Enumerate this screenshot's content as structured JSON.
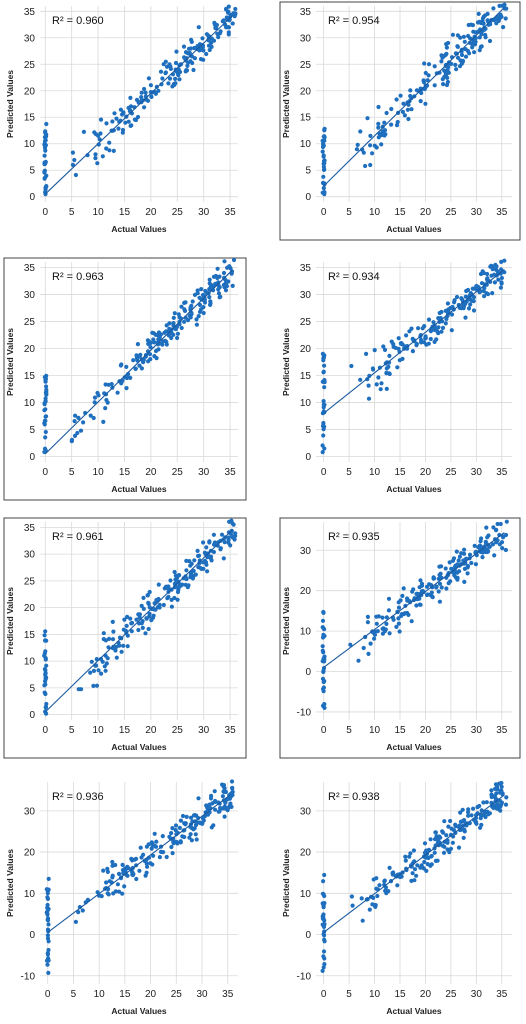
{
  "figure": {
    "marker_color": "#1f6fbf",
    "line_color": "#1a5aa0",
    "grid_color": "#d9d9d9",
    "panels": [
      {
        "r2_label": "R² = 0.960",
        "xlabel": "Actual Values",
        "ylabel": "Predicted Values",
        "xticks": [
          "0",
          "5",
          "10",
          "15",
          "20",
          "25",
          "30",
          "35"
        ],
        "yticks": [
          "0",
          "5",
          "10",
          "15",
          "20",
          "25",
          "30",
          "35"
        ],
        "xlim": [
          -1,
          36.5
        ],
        "ylim": [
          -1,
          36
        ],
        "fit": {
          "slope": 0.95,
          "intercept": 0.5
        },
        "zero_cluster": {
          "min": 0,
          "max": 14
        },
        "noise": 2.0
      },
      {
        "r2_label": "R² = 0.954",
        "xlabel": "Actual Values",
        "ylabel": "Predicted Values",
        "xticks": [
          "0",
          "5",
          "10",
          "15",
          "20",
          "25",
          "30",
          "35"
        ],
        "yticks": [
          "0",
          "5",
          "10",
          "15",
          "20",
          "25",
          "30",
          "35"
        ],
        "xlim": [
          -1.5,
          37
        ],
        "ylim": [
          -1,
          36
        ],
        "fit": {
          "slope": 0.95,
          "intercept": 2.0
        },
        "zero_cluster": {
          "min": 0,
          "max": 14
        },
        "noise": 2.2
      },
      {
        "r2_label": "R² = 0.963",
        "xlabel": "Actual Values",
        "ylabel": "Predicted Values",
        "xticks": [
          "0",
          "5",
          "10",
          "15",
          "20",
          "25",
          "30",
          "35"
        ],
        "yticks": [
          "0",
          "5",
          "10",
          "15",
          "20",
          "25",
          "30",
          "35"
        ],
        "xlim": [
          -1,
          36.5
        ],
        "ylim": [
          -1,
          36
        ],
        "fit": {
          "slope": 0.96,
          "intercept": 0.5
        },
        "zero_cluster": {
          "min": 0,
          "max": 15
        },
        "noise": 1.9
      },
      {
        "r2_label": "R² = 0.934",
        "xlabel": "Actual Values",
        "ylabel": "Predicted Values",
        "xticks": [
          "0",
          "5",
          "10",
          "15",
          "20",
          "25",
          "30",
          "35"
        ],
        "yticks": [
          "0",
          "5",
          "10",
          "15",
          "20",
          "25",
          "30",
          "35"
        ],
        "xlim": [
          -1.5,
          37
        ],
        "ylim": [
          -1,
          36
        ],
        "fit": {
          "slope": 0.75,
          "intercept": 8.0
        },
        "zero_cluster": {
          "min": 0,
          "max": 19
        },
        "noise": 1.8
      },
      {
        "r2_label": "R² = 0.961",
        "xlabel": "Actual Values",
        "ylabel": "Predicted Values",
        "xticks": [
          "0",
          "5",
          "10",
          "15",
          "20",
          "25",
          "30",
          "35"
        ],
        "yticks": [
          "0",
          "5",
          "10",
          "15",
          "20",
          "25",
          "30",
          "35"
        ],
        "xlim": [
          -1,
          36.5
        ],
        "ylim": [
          -1,
          36
        ],
        "fit": {
          "slope": 0.96,
          "intercept": 0.5
        },
        "zero_cluster": {
          "min": 0,
          "max": 16
        },
        "noise": 2.0
      },
      {
        "r2_label": "R² = 0.935",
        "xlabel": "Actual Values",
        "ylabel": "Predicted Values",
        "xticks": [
          "0",
          "5",
          "10",
          "15",
          "20",
          "25",
          "30",
          "35"
        ],
        "yticks": [
          "-10",
          "0",
          "10",
          "20",
          "30"
        ],
        "xlim": [
          -1.5,
          37
        ],
        "ylim": [
          -12,
          37
        ],
        "fit": {
          "slope": 0.94,
          "intercept": 1.0
        },
        "zero_cluster": {
          "min": -10,
          "max": 15
        },
        "noise": 2.6
      },
      {
        "r2_label": "R² = 0.936",
        "xlabel": "Actual Values",
        "ylabel": "Predicted Values",
        "xticks": [
          "0",
          "5",
          "10",
          "15",
          "20",
          "25",
          "30",
          "35"
        ],
        "yticks": [
          "-10",
          "0",
          "10",
          "20",
          "30"
        ],
        "xlim": [
          -1.5,
          37
        ],
        "ylim": [
          -12,
          37
        ],
        "fit": {
          "slope": 0.94,
          "intercept": 0.5
        },
        "zero_cluster": {
          "min": -10,
          "max": 15
        },
        "noise": 2.6
      },
      {
        "r2_label": "R² = 0.938",
        "xlabel": "Actual Values",
        "ylabel": "Predicted Values",
        "xticks": [
          "0",
          "5",
          "10",
          "15",
          "20",
          "25",
          "30",
          "35"
        ],
        "yticks": [
          "-10",
          "0",
          "10",
          "20",
          "30"
        ],
        "xlim": [
          -1.5,
          37
        ],
        "ylim": [
          -12,
          37
        ],
        "fit": {
          "slope": 0.94,
          "intercept": 0.5
        },
        "zero_cluster": {
          "min": -10,
          "max": 15
        },
        "noise": 2.6
      }
    ]
  },
  "chart_data": [
    {
      "type": "scatter",
      "annotation": "R² = 0.960",
      "xlabel": "Actual Values",
      "ylabel": "Predicted Values",
      "xlim": [
        0,
        35
      ],
      "ylim": [
        0,
        35
      ],
      "fit_line": {
        "slope": 0.95,
        "intercept": 0.5
      }
    },
    {
      "type": "scatter",
      "annotation": "R² = 0.954",
      "xlabel": "Actual Values",
      "ylabel": "Predicted Values",
      "xlim": [
        0,
        35
      ],
      "ylim": [
        0,
        35
      ],
      "fit_line": {
        "slope": 0.95,
        "intercept": 2.0
      }
    },
    {
      "type": "scatter",
      "annotation": "R² = 0.963",
      "xlabel": "Actual Values",
      "ylabel": "Predicted Values",
      "xlim": [
        0,
        35
      ],
      "ylim": [
        0,
        35
      ],
      "fit_line": {
        "slope": 0.96,
        "intercept": 0.5
      }
    },
    {
      "type": "scatter",
      "annotation": "R² = 0.934",
      "xlabel": "Actual Values",
      "ylabel": "Predicted Values",
      "xlim": [
        0,
        35
      ],
      "ylim": [
        0,
        35
      ],
      "fit_line": {
        "slope": 0.75,
        "intercept": 8.0
      }
    },
    {
      "type": "scatter",
      "annotation": "R² = 0.961",
      "xlabel": "Actual Values",
      "ylabel": "Predicted Values",
      "xlim": [
        0,
        35
      ],
      "ylim": [
        0,
        35
      ],
      "fit_line": {
        "slope": 0.96,
        "intercept": 0.5
      }
    },
    {
      "type": "scatter",
      "annotation": "R² = 0.935",
      "xlabel": "Actual Values",
      "ylabel": "Predicted Values",
      "xlim": [
        0,
        35
      ],
      "ylim": [
        -10,
        35
      ],
      "fit_line": {
        "slope": 0.94,
        "intercept": 1.0
      }
    },
    {
      "type": "scatter",
      "annotation": "R² = 0.936",
      "xlabel": "Actual Values",
      "ylabel": "Predicted Values",
      "xlim": [
        0,
        35
      ],
      "ylim": [
        -10,
        35
      ],
      "fit_line": {
        "slope": 0.94,
        "intercept": 0.5
      }
    },
    {
      "type": "scatter",
      "annotation": "R² = 0.938",
      "xlabel": "Actual Values",
      "ylabel": "Predicted Values",
      "xlim": [
        0,
        35
      ],
      "ylim": [
        -10,
        35
      ],
      "fit_line": {
        "slope": 0.94,
        "intercept": 0.5
      }
    }
  ]
}
